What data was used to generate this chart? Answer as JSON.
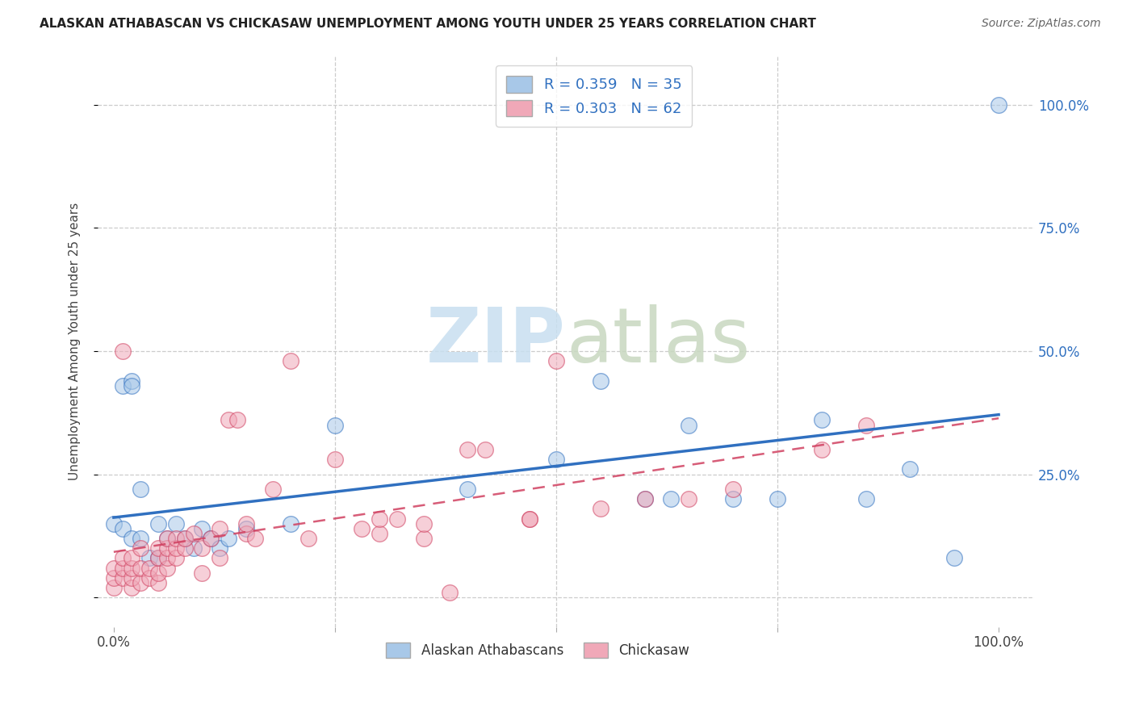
{
  "title": "ALASKAN ATHABASCAN VS CHICKASAW UNEMPLOYMENT AMONG YOUTH UNDER 25 YEARS CORRELATION CHART",
  "source": "Source: ZipAtlas.com",
  "ylabel": "Unemployment Among Youth under 25 years",
  "legend_label1": "R = 0.359   N = 35",
  "legend_label2": "R = 0.303   N = 62",
  "legend_bottom_label1": "Alaskan Athabascans",
  "legend_bottom_label2": "Chickasaw",
  "color_blue": "#a8c8e8",
  "color_pink": "#f0a8b8",
  "color_blue_line": "#3070c0",
  "color_pink_line": "#d04060",
  "background_color": "#ffffff",
  "blue_scatter_x": [
    0.0,
    0.01,
    0.01,
    0.02,
    0.02,
    0.03,
    0.04,
    0.05,
    0.05,
    0.06,
    0.07,
    0.08,
    0.09,
    0.1,
    0.11,
    0.12,
    0.13,
    0.15,
    0.2,
    0.25,
    0.4,
    0.5,
    0.55,
    0.6,
    0.65,
    0.7,
    0.75,
    0.8,
    0.85,
    0.9,
    0.95,
    1.0,
    0.63,
    0.02,
    0.03
  ],
  "blue_scatter_y": [
    0.15,
    0.14,
    0.43,
    0.44,
    0.43,
    0.22,
    0.08,
    0.08,
    0.15,
    0.12,
    0.15,
    0.12,
    0.1,
    0.14,
    0.12,
    0.1,
    0.12,
    0.14,
    0.15,
    0.35,
    0.22,
    0.28,
    0.44,
    0.2,
    0.35,
    0.2,
    0.2,
    0.36,
    0.2,
    0.26,
    0.08,
    1.0,
    0.2,
    0.12,
    0.12
  ],
  "pink_scatter_x": [
    0.0,
    0.0,
    0.0,
    0.01,
    0.01,
    0.01,
    0.02,
    0.02,
    0.02,
    0.02,
    0.03,
    0.03,
    0.03,
    0.04,
    0.04,
    0.05,
    0.05,
    0.05,
    0.05,
    0.06,
    0.06,
    0.06,
    0.06,
    0.07,
    0.07,
    0.07,
    0.08,
    0.08,
    0.09,
    0.1,
    0.1,
    0.11,
    0.12,
    0.12,
    0.13,
    0.14,
    0.15,
    0.15,
    0.16,
    0.18,
    0.2,
    0.22,
    0.25,
    0.28,
    0.3,
    0.3,
    0.32,
    0.35,
    0.35,
    0.38,
    0.4,
    0.42,
    0.47,
    0.47,
    0.5,
    0.55,
    0.6,
    0.65,
    0.7,
    0.8,
    0.85,
    0.01
  ],
  "pink_scatter_y": [
    0.02,
    0.04,
    0.06,
    0.04,
    0.06,
    0.08,
    0.02,
    0.04,
    0.06,
    0.08,
    0.03,
    0.06,
    0.1,
    0.04,
    0.06,
    0.03,
    0.05,
    0.08,
    0.1,
    0.06,
    0.08,
    0.1,
    0.12,
    0.08,
    0.1,
    0.12,
    0.1,
    0.12,
    0.13,
    0.05,
    0.1,
    0.12,
    0.08,
    0.14,
    0.36,
    0.36,
    0.13,
    0.15,
    0.12,
    0.22,
    0.48,
    0.12,
    0.28,
    0.14,
    0.13,
    0.16,
    0.16,
    0.12,
    0.15,
    0.01,
    0.3,
    0.3,
    0.16,
    0.16,
    0.48,
    0.18,
    0.2,
    0.2,
    0.22,
    0.3,
    0.35,
    0.5
  ]
}
